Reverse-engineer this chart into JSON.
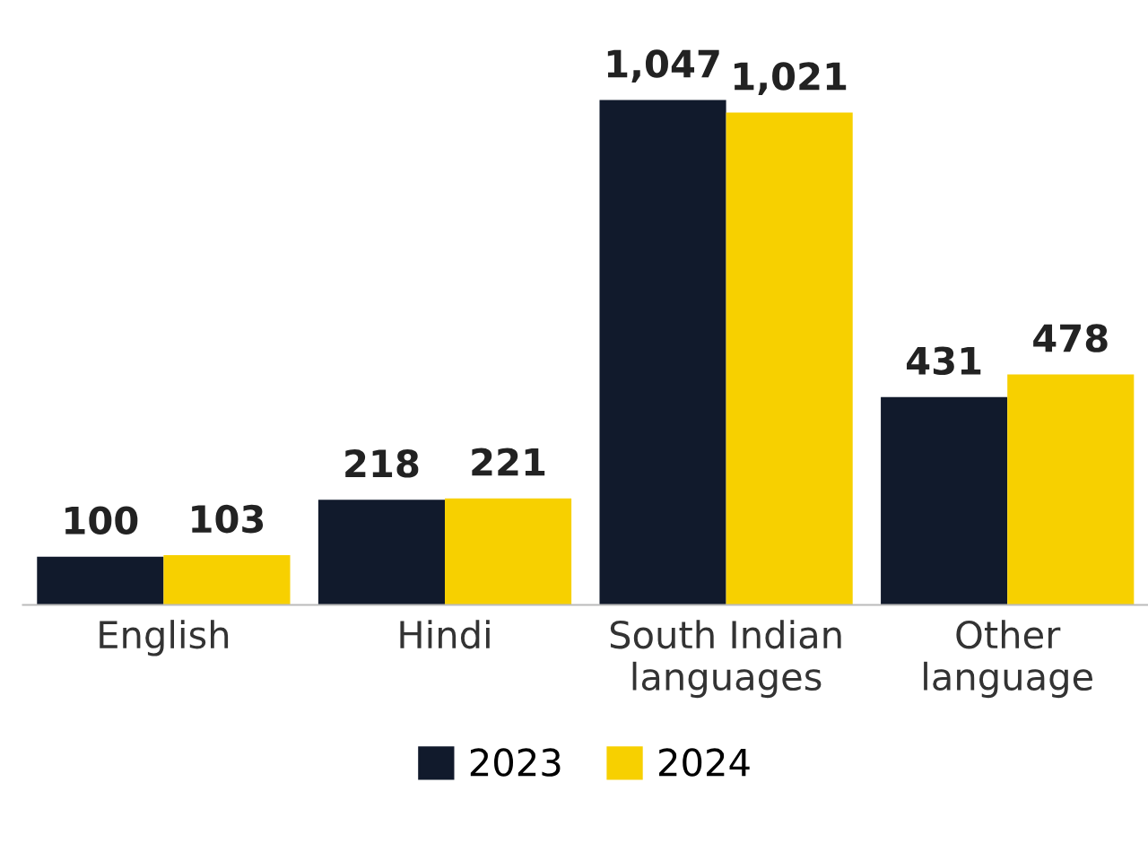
{
  "chart_data": {
    "type": "bar",
    "categories": [
      "English",
      "Hindi",
      "South Indian\nlanguages",
      "Other\nlanguage"
    ],
    "series": [
      {
        "name": "2023",
        "color": "#111a2c",
        "values": [
          100,
          218,
          1047,
          431
        ],
        "value_labels": [
          "100",
          "218",
          "1,047",
          "431"
        ]
      },
      {
        "name": "2024",
        "color": "#f7d000",
        "values": [
          103,
          221,
          1021,
          478
        ],
        "value_labels": [
          "103",
          "221",
          "1,021",
          "478"
        ]
      }
    ],
    "legend": "bottom",
    "grid": false
  }
}
